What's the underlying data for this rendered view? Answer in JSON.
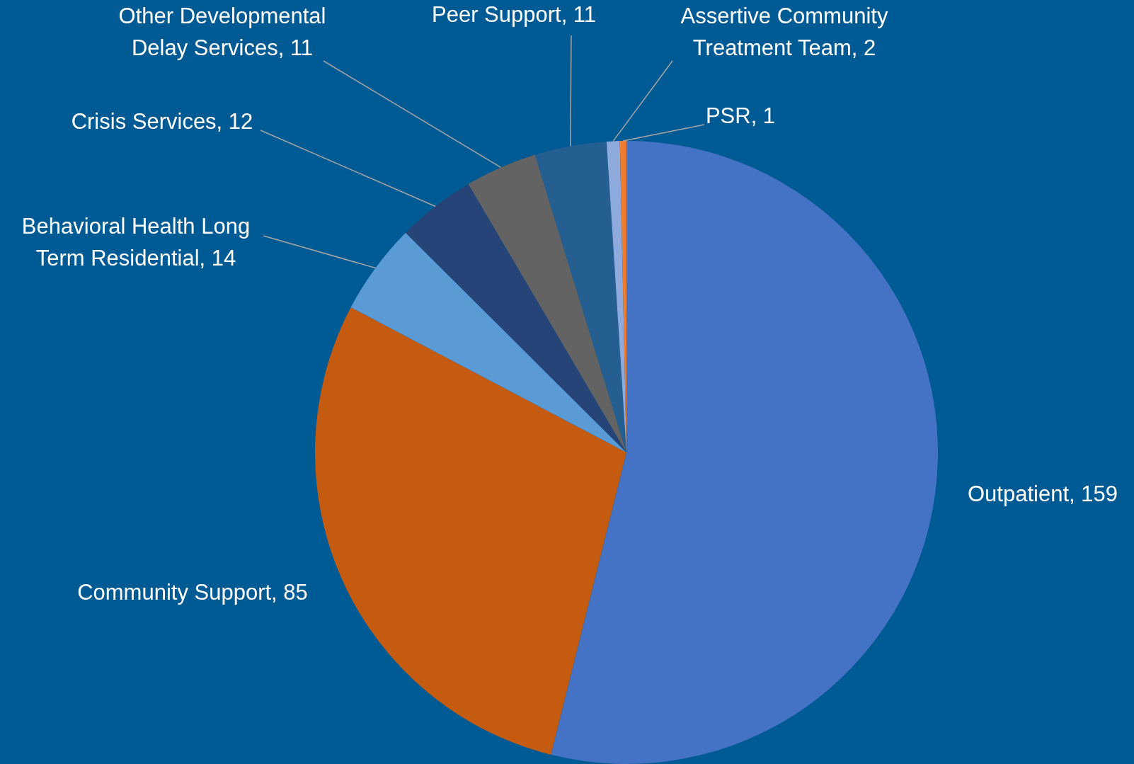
{
  "chart_data": {
    "type": "pie",
    "categories": [
      "Outpatient, 159",
      "Community Support, 85",
      "Behavioral Health Long Term Residential, 14",
      "Crisis Services, 12",
      "Other Developmental Delay Services, 11",
      "Peer Support, 11",
      "Assertive Community Treatment Team, 2",
      "PSR, 1"
    ],
    "values": [
      159,
      85,
      14,
      12,
      11,
      11,
      2,
      1
    ],
    "colors": [
      "#4472c4",
      "#c55a11",
      "#5b9bd5",
      "#264478",
      "#636363",
      "#255e91",
      "#8faadc",
      "#ed7d31"
    ],
    "legend": false
  }
}
